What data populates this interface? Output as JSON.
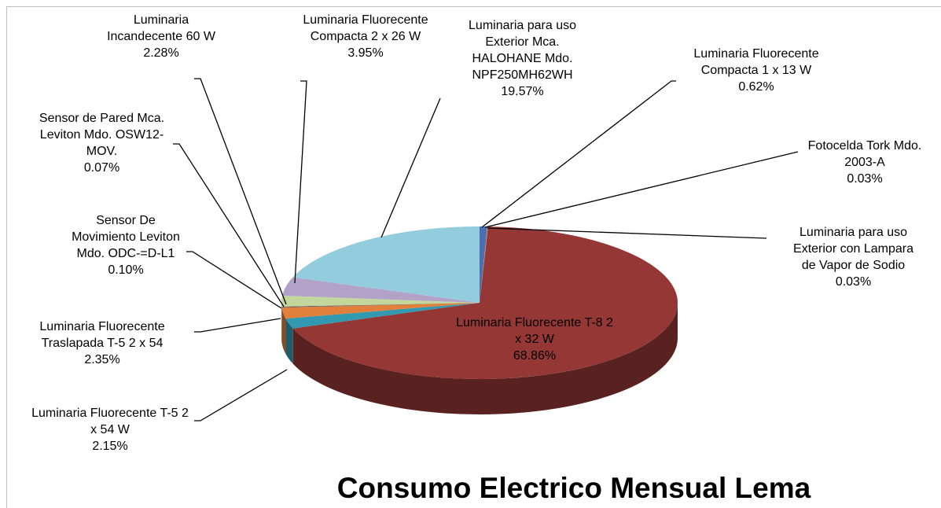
{
  "chart_data": {
    "type": "pie3d",
    "title": "Consumo Electrico Mensual Lema",
    "categories": [
      "Luminaria Fluorecente Compacta 1 x 13 W",
      "Fotocelda Tork Mdo. 2003-A",
      "Luminaria para uso Exterior con Lampara de Vapor de Sodio",
      "Luminaria Fluorecente T-8  2 x 32 W",
      "Luminaria Fluorecente T-5  2 x 54 W",
      "Luminaria Fluorecente Traslapada T-5 2 x 54",
      "Sensor De Movimiento Leviton Mdo. ODC-=D-L1",
      "Sensor de Pared Mca. Leviton Mdo. OSW12-MOV.",
      "Luminaria Incandecente 60 W",
      "Luminaria Fluorecente Compacta 2 x 26 W",
      "Luminaria para uso Exterior Mca. HALOHANE Mdo. NPF250MH62WH"
    ],
    "values": [
      0.62,
      0.03,
      0.03,
      68.86,
      2.15,
      2.35,
      0.1,
      0.07,
      2.28,
      3.95,
      19.57
    ],
    "value_labels": [
      "0.62%",
      "0.03%",
      "0.03%",
      "68.86%",
      "2.15%",
      "2.35%",
      "0.10%",
      "0.07%",
      "2.28%",
      "3.95%",
      "19.57%"
    ],
    "colors": [
      "#4a6fb0",
      "#c0504d",
      "#9bbb59",
      "#953735",
      "#3399b0",
      "#e0803a",
      "#2c4d75",
      "#772c2a",
      "#c3d69b",
      "#b3a2c7",
      "#93cddd"
    ]
  }
}
